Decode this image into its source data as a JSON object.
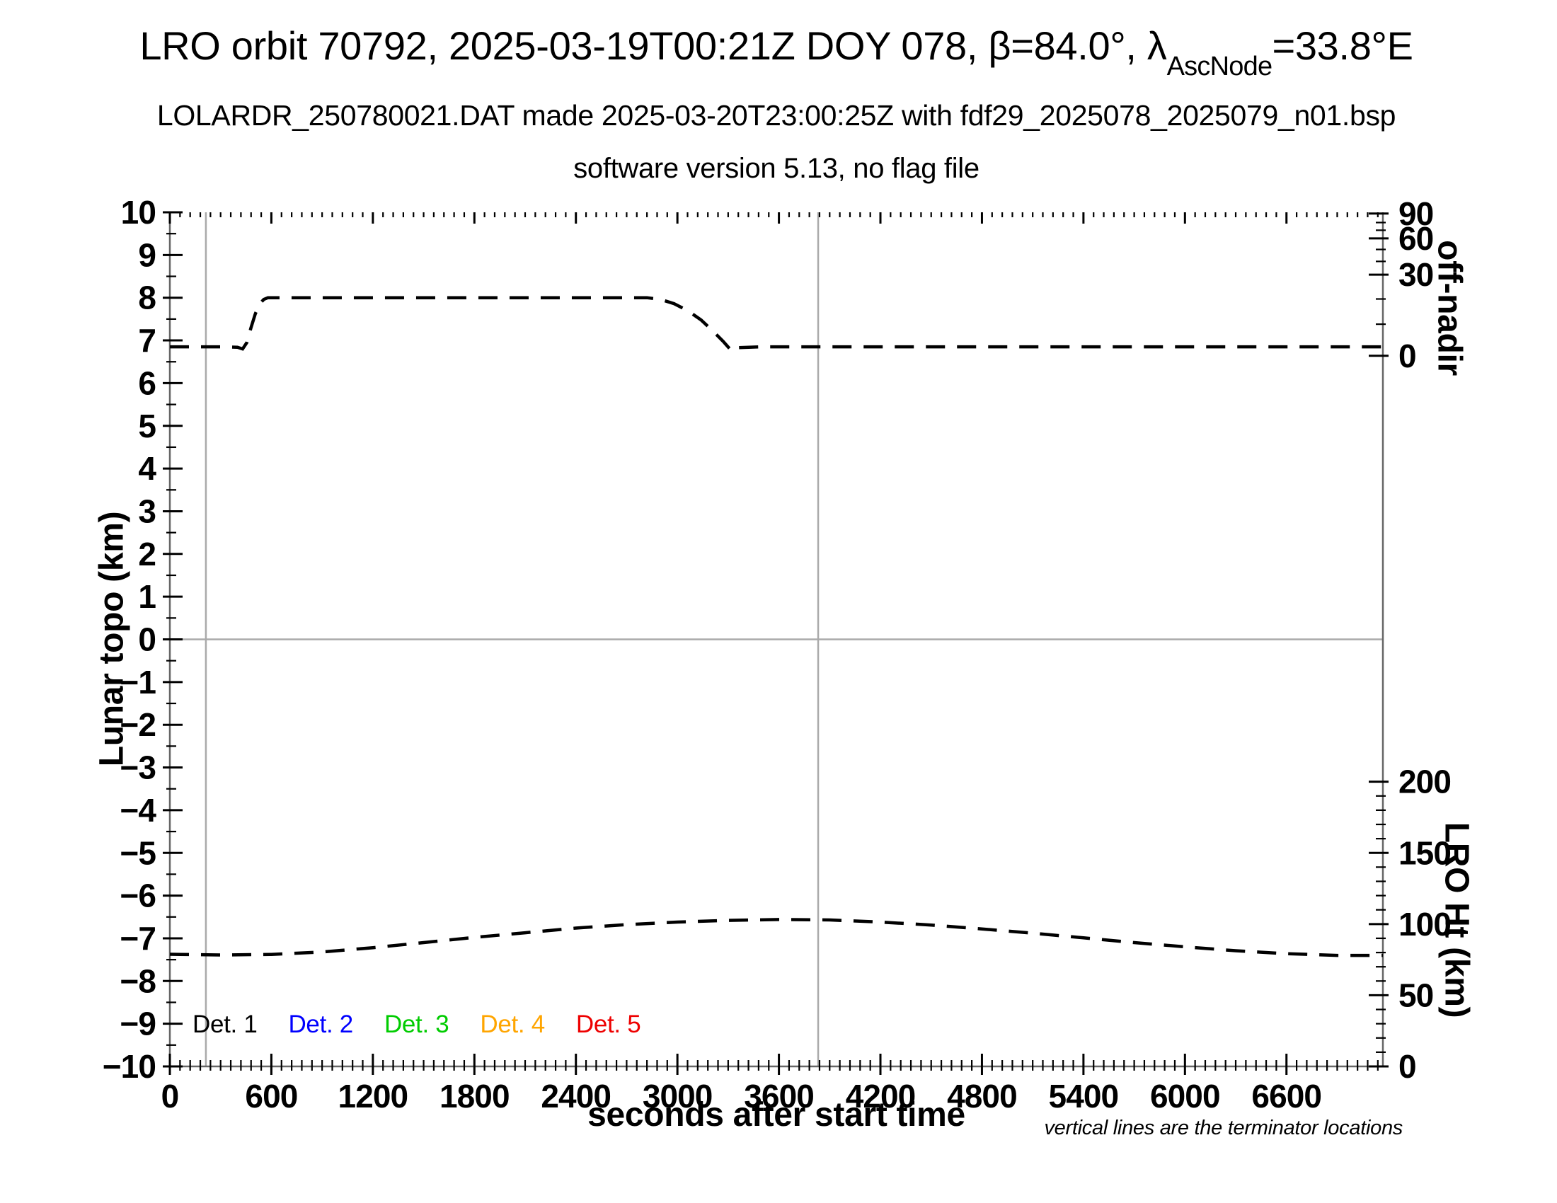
{
  "header": {
    "title_pre": "LRO orbit 70792, 2025-03-19T00:21Z DOY 078, β=84.0°, λ",
    "title_sub": "AscNode",
    "title_post": "=33.8°E",
    "subtitle": "LOLARDR_250780021.DAT made 2025-03-20T23:00:25Z with fdf29_2025078_2025079_n01.bsp",
    "subtitle2": "software version 5.13, no flag file"
  },
  "axes": {
    "x": {
      "label": "seconds after start time",
      "range": [
        0,
        7170
      ],
      "major_ticks": [
        0,
        600,
        1200,
        1800,
        2400,
        3000,
        3600,
        4200,
        4800,
        5400,
        6000,
        6600
      ],
      "minor_step": 60
    },
    "y_left": {
      "label": "Lunar topo (km)",
      "range": [
        -10,
        10
      ],
      "major_step": 1,
      "minor_step": 0.5
    },
    "y_right_top": {
      "label": "off-nadir",
      "ticks": [
        {
          "degrees": 90,
          "topo_pos": 9.97,
          "minor": false
        },
        {
          "degrees": 80,
          "topo_pos": 9.76,
          "minor": true
        },
        {
          "degrees": 70,
          "topo_pos": 9.58,
          "minor": true
        },
        {
          "degrees": 60,
          "topo_pos": 9.39,
          "minor": false
        },
        {
          "degrees": 50,
          "topo_pos": 9.13,
          "minor": true
        },
        {
          "degrees": 40,
          "topo_pos": 8.85,
          "minor": true
        },
        {
          "degrees": 30,
          "topo_pos": 8.54,
          "minor": false
        },
        {
          "degrees": 20,
          "topo_pos": 7.97,
          "minor": true
        },
        {
          "degrees": 10,
          "topo_pos": 7.38,
          "minor": true
        },
        {
          "degrees": 0,
          "topo_pos": 6.64,
          "minor": false
        }
      ]
    },
    "y_right_bottom": {
      "label": "LRO Ht (km)",
      "major_ticks_km": [
        0,
        50,
        100,
        150,
        200
      ],
      "minor_step_km": 10,
      "km_at_topo_minus10": 0,
      "km_per_topo_unit": 30
    }
  },
  "legend": {
    "items": [
      {
        "label": "Det. 1",
        "color": "#000000"
      },
      {
        "label": "Det. 2",
        "color": "#0000ff"
      },
      {
        "label": "Det. 3",
        "color": "#00cc00"
      },
      {
        "label": "Det. 4",
        "color": "#ffa500"
      },
      {
        "label": "Det. 5",
        "color": "#ee0000"
      }
    ]
  },
  "footnote": "vertical lines are the terminator locations",
  "chart_data": {
    "type": "line",
    "title": "LRO orbit 70792, 2025-03-19T00:21Z DOY 078, β=84.0°, λAscNode=33.8°E",
    "xlabel": "seconds after start time",
    "ylabel_left": "Lunar topo (km)",
    "ylabel_right_top": "off-nadir",
    "ylabel_right_bottom": "LRO Ht (km)",
    "xlim": [
      0,
      7170
    ],
    "ylim_left": [
      -10,
      10
    ],
    "grid": "y-zero line and terminator vertical lines only",
    "terminator_lines_s": [
      213,
      3832
    ],
    "line_color": "#000000",
    "gray_line_color": "#aaaaaa",
    "series": [
      {
        "name": "off-nadir angle (plotted on left topo-km scale)",
        "line_style": "dashed",
        "color": "#000000",
        "points_s_topo": [
          [
            0,
            6.85
          ],
          [
            150,
            6.85
          ],
          [
            300,
            6.85
          ],
          [
            400,
            6.84
          ],
          [
            430,
            6.8
          ],
          [
            455,
            6.95
          ],
          [
            480,
            7.3
          ],
          [
            505,
            7.62
          ],
          [
            530,
            7.85
          ],
          [
            555,
            7.96
          ],
          [
            580,
            8.0
          ],
          [
            1000,
            8.0
          ],
          [
            1500,
            8.0
          ],
          [
            2000,
            8.0
          ],
          [
            2500,
            8.0
          ],
          [
            2820,
            8.0
          ],
          [
            2900,
            7.96
          ],
          [
            2980,
            7.86
          ],
          [
            3060,
            7.7
          ],
          [
            3140,
            7.48
          ],
          [
            3210,
            7.22
          ],
          [
            3270,
            6.98
          ],
          [
            3310,
            6.8
          ],
          [
            3330,
            6.74
          ],
          [
            3360,
            6.83
          ],
          [
            3500,
            6.85
          ],
          [
            4000,
            6.85
          ],
          [
            4500,
            6.85
          ],
          [
            5000,
            6.85
          ],
          [
            5500,
            6.85
          ],
          [
            6000,
            6.85
          ],
          [
            6500,
            6.85
          ],
          [
            7000,
            6.85
          ],
          [
            7170,
            6.85
          ]
        ]
      },
      {
        "name": "LRO height",
        "line_style": "dashed",
        "color": "#000000",
        "points_s_km": [
          [
            0,
            78.8
          ],
          [
            300,
            78.3
          ],
          [
            600,
            78.7
          ],
          [
            900,
            80.4
          ],
          [
            1200,
            83.4
          ],
          [
            1500,
            87.0
          ],
          [
            1800,
            90.6
          ],
          [
            2100,
            93.9
          ],
          [
            2400,
            97.2
          ],
          [
            2700,
            99.6
          ],
          [
            3000,
            101.4
          ],
          [
            3300,
            102.6
          ],
          [
            3600,
            103.2
          ],
          [
            3900,
            102.9
          ],
          [
            4200,
            101.4
          ],
          [
            4500,
            99.3
          ],
          [
            4800,
            96.6
          ],
          [
            5100,
            93.6
          ],
          [
            5400,
            90.3
          ],
          [
            5700,
            87.0
          ],
          [
            6000,
            84.0
          ],
          [
            6300,
            81.3
          ],
          [
            6600,
            79.2
          ],
          [
            6900,
            78.0
          ],
          [
            7170,
            78.0
          ]
        ]
      }
    ]
  }
}
